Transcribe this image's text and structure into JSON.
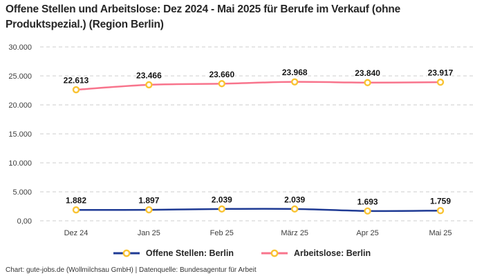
{
  "title": "Offene Stellen und Arbeitslose: Dez 2024 - Mai 2025 für Berufe im Verkauf (ohne Produktspezial.) (Region Berlin)",
  "footer": "Chart: gute-jobs.de (Wollmilchsau GmbH) | Datenquelle: Bundesagentur für Arbeit",
  "chart_data": {
    "type": "line",
    "title": "Offene Stellen und Arbeitslose: Dez 2024 - Mai 2025 für Berufe im Verkauf (ohne Produktspezial.) (Region Berlin)",
    "categories": [
      "Dez 24",
      "Jan 25",
      "Feb 25",
      "März 25",
      "Apr 25",
      "Mai 25"
    ],
    "series": [
      {
        "name": "Offene Stellen: Berlin",
        "color": "#1e3a94",
        "values": [
          1882,
          1897,
          2039,
          2039,
          1693,
          1759
        ],
        "value_labels": [
          "1.882",
          "1.897",
          "2.039",
          "2.039",
          "1.693",
          "1.759"
        ]
      },
      {
        "name": "Arbeitslose: Berlin",
        "color": "#f8748c",
        "values": [
          22613,
          23466,
          23660,
          23968,
          23840,
          23917
        ],
        "value_labels": [
          "22.613",
          "23.466",
          "23.660",
          "23.968",
          "23.840",
          "23.917"
        ]
      }
    ],
    "ylim": [
      0,
      30000
    ],
    "y_ticks": [
      {
        "value": 0,
        "label": "0,00"
      },
      {
        "value": 5000,
        "label": "5.000"
      },
      {
        "value": 10000,
        "label": "10.000"
      },
      {
        "value": 15000,
        "label": "15.000"
      },
      {
        "value": 20000,
        "label": "20.000"
      },
      {
        "value": 25000,
        "label": "25.000"
      },
      {
        "value": 30000,
        "label": "30.000"
      }
    ],
    "grid": "horizontal-dashed",
    "grid_color": "#cccccc",
    "legend_position": "bottom",
    "marker": {
      "fill": "#ffffff",
      "ring": "#f9c332"
    }
  }
}
